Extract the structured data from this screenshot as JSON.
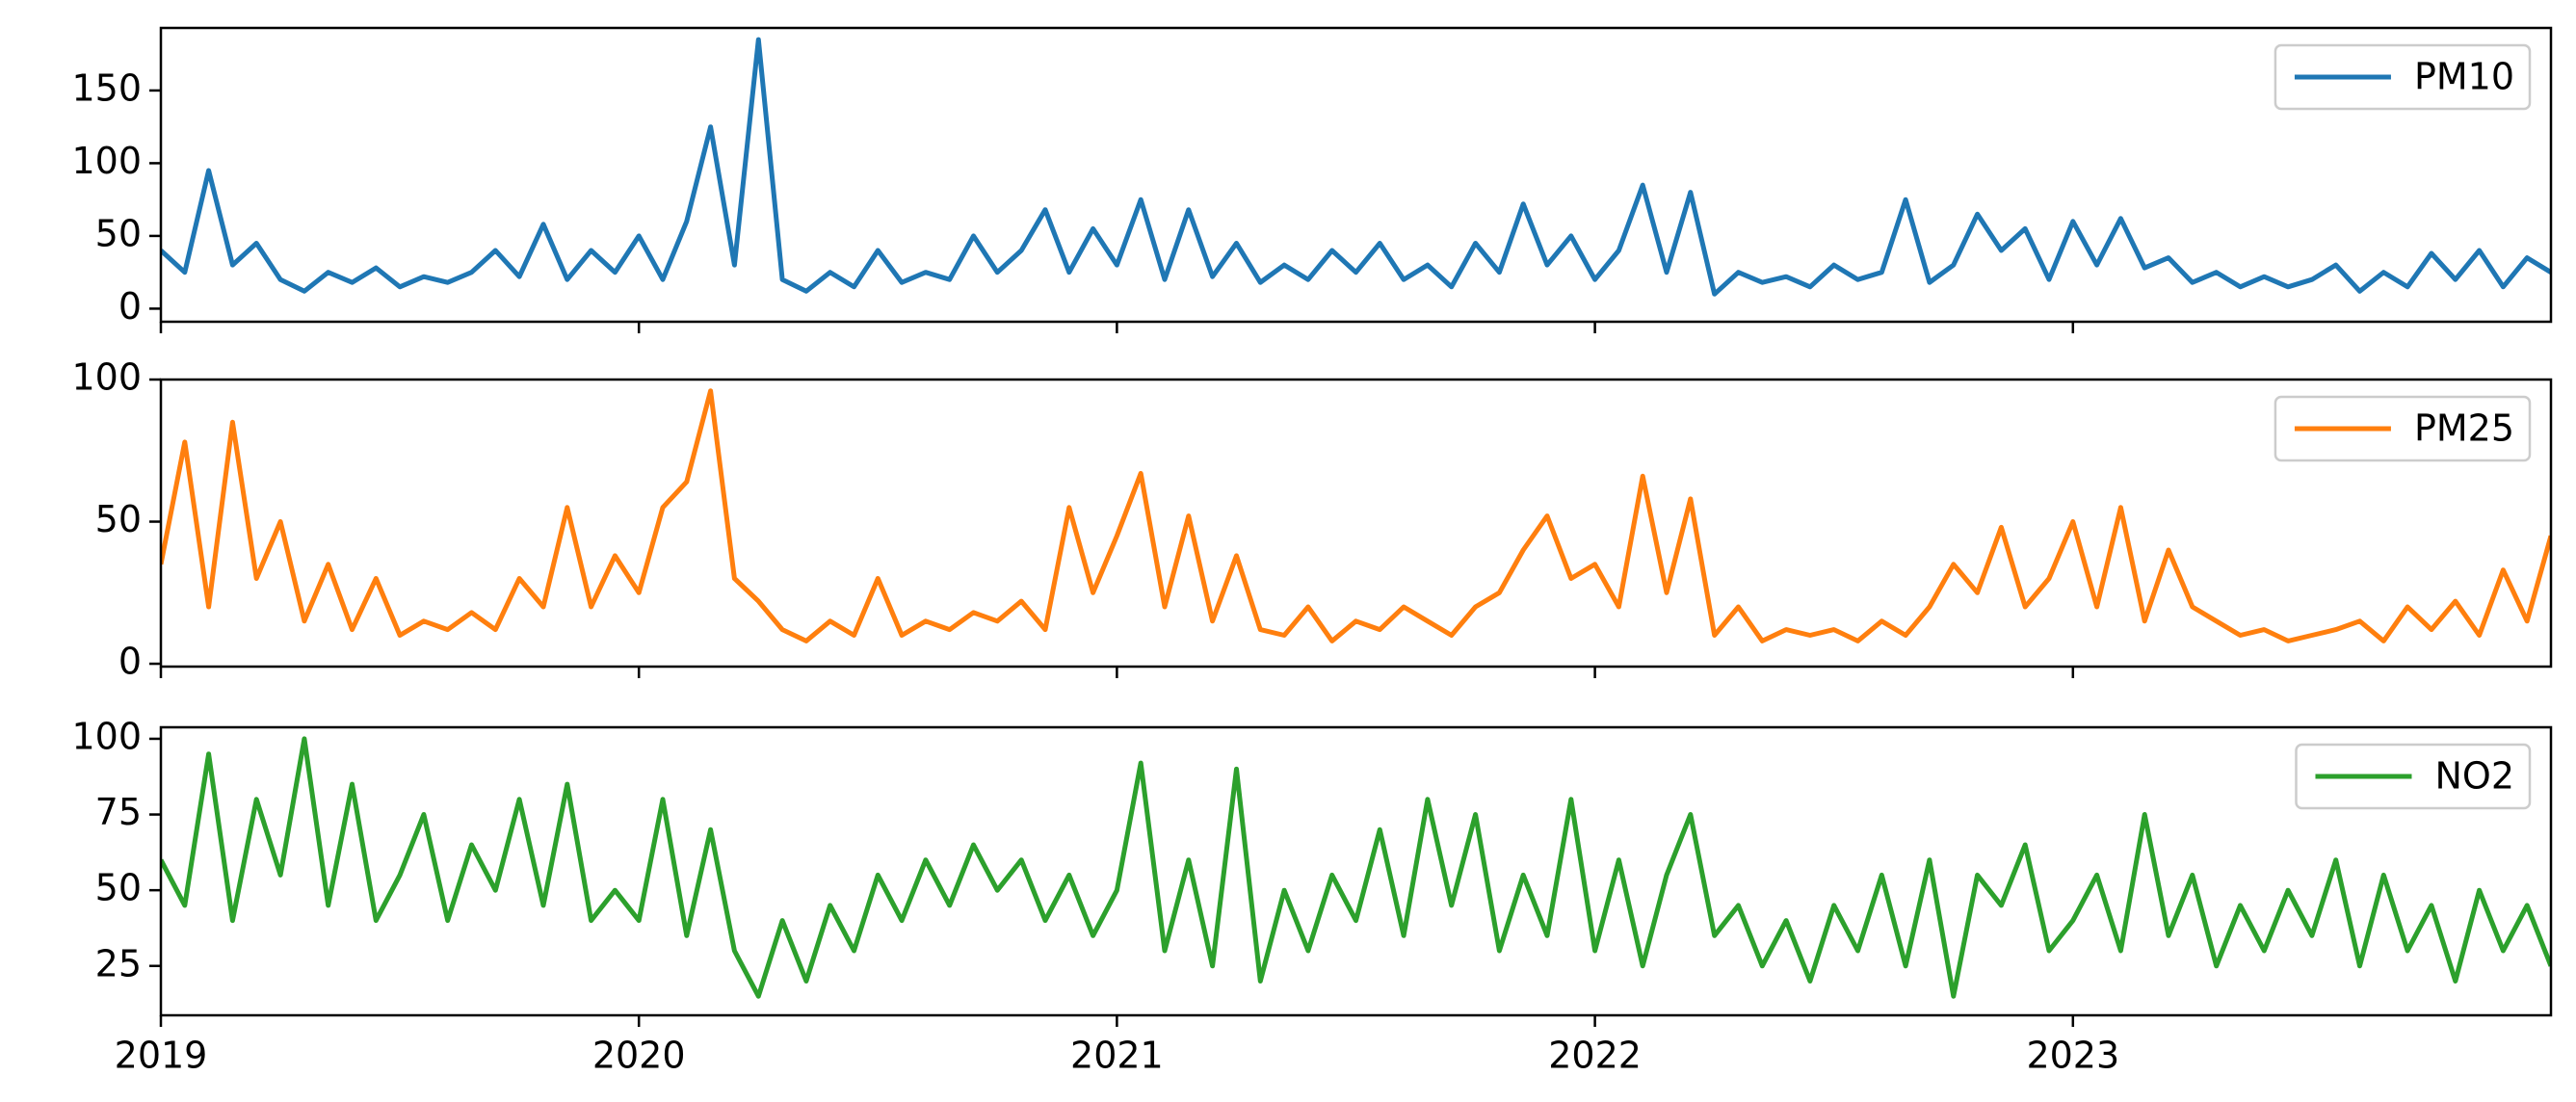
{
  "chart_data": {
    "type": "line",
    "legend": "upper right",
    "x": [
      2019.0,
      2019.05,
      2019.1,
      2019.15,
      2019.2,
      2019.25,
      2019.3,
      2019.35,
      2019.4,
      2019.45,
      2019.5,
      2019.55,
      2019.6,
      2019.65,
      2019.7,
      2019.75,
      2019.8,
      2019.85,
      2019.9,
      2019.95,
      2020.0,
      2020.05,
      2020.1,
      2020.15,
      2020.2,
      2020.25,
      2020.3,
      2020.35,
      2020.4,
      2020.45,
      2020.5,
      2020.55,
      2020.6,
      2020.65,
      2020.7,
      2020.75,
      2020.8,
      2020.85,
      2020.9,
      2020.95,
      2021.0,
      2021.05,
      2021.1,
      2021.15,
      2021.2,
      2021.25,
      2021.3,
      2021.35,
      2021.4,
      2021.45,
      2021.5,
      2021.55,
      2021.6,
      2021.65,
      2021.7,
      2021.75,
      2021.8,
      2021.85,
      2021.9,
      2021.95,
      2022.0,
      2022.05,
      2022.1,
      2022.15,
      2022.2,
      2022.25,
      2022.3,
      2022.35,
      2022.4,
      2022.45,
      2022.5,
      2022.55,
      2022.6,
      2022.65,
      2022.7,
      2022.75,
      2022.8,
      2022.85,
      2022.9,
      2022.95,
      2023.0,
      2023.05,
      2023.1,
      2023.15,
      2023.2,
      2023.25,
      2023.3,
      2023.35,
      2023.4,
      2023.45,
      2023.5,
      2023.55,
      2023.6,
      2023.65,
      2023.7,
      2023.75,
      2023.8,
      2023.85,
      2023.9,
      2023.95,
      2024.0
    ],
    "xlim": [
      2019,
      2024
    ],
    "xticks": [
      2019,
      2020,
      2021,
      2022,
      2023
    ],
    "panels": [
      {
        "ylim": [
          -9,
          193
        ],
        "yticks": [
          0,
          50,
          100,
          150
        ],
        "series": [
          {
            "name": "PM10",
            "color": "#1f77b4",
            "values": [
              40,
              25,
              95,
              30,
              45,
              20,
              12,
              25,
              18,
              28,
              15,
              22,
              18,
              25,
              40,
              22,
              58,
              20,
              40,
              25,
              50,
              20,
              60,
              125,
              30,
              185,
              20,
              12,
              25,
              15,
              40,
              18,
              25,
              20,
              50,
              25,
              40,
              68,
              25,
              55,
              30,
              75,
              20,
              68,
              22,
              45,
              18,
              30,
              20,
              40,
              25,
              45,
              20,
              30,
              15,
              45,
              25,
              72,
              30,
              50,
              20,
              40,
              85,
              25,
              80,
              10,
              25,
              18,
              22,
              15,
              30,
              20,
              25,
              75,
              18,
              30,
              65,
              40,
              55,
              20,
              60,
              30,
              62,
              28,
              35,
              18,
              25,
              15,
              22,
              15,
              20,
              30,
              12,
              25,
              15,
              38,
              20,
              40,
              15,
              35,
              25
            ]
          }
        ]
      },
      {
        "ylim": [
          -1,
          100
        ],
        "yticks": [
          0,
          50,
          100
        ],
        "series": [
          {
            "name": "PM25",
            "color": "#ff7f0e",
            "values": [
              35,
              78,
              20,
              85,
              30,
              50,
              15,
              35,
              12,
              30,
              10,
              15,
              12,
              18,
              12,
              30,
              20,
              55,
              20,
              38,
              25,
              55,
              64,
              96,
              30,
              22,
              12,
              8,
              15,
              10,
              30,
              10,
              15,
              12,
              18,
              15,
              22,
              12,
              55,
              25,
              45,
              67,
              20,
              52,
              15,
              38,
              12,
              10,
              20,
              8,
              15,
              12,
              20,
              15,
              10,
              20,
              25,
              40,
              52,
              30,
              35,
              20,
              66,
              25,
              58,
              10,
              20,
              8,
              12,
              10,
              12,
              8,
              15,
              10,
              20,
              35,
              25,
              48,
              20,
              30,
              50,
              20,
              55,
              15,
              40,
              20,
              15,
              10,
              12,
              8,
              10,
              12,
              15,
              8,
              20,
              12,
              22,
              10,
              33,
              15,
              45
            ]
          }
        ]
      },
      {
        "ylim": [
          8.7,
          103.8
        ],
        "yticks": [
          25,
          50,
          75,
          100
        ],
        "series": [
          {
            "name": "NO2",
            "color": "#2ca02c",
            "values": [
              60,
              45,
              95,
              40,
              80,
              55,
              100,
              45,
              85,
              40,
              55,
              75,
              40,
              65,
              50,
              80,
              45,
              85,
              40,
              50,
              40,
              80,
              35,
              70,
              30,
              15,
              40,
              20,
              45,
              30,
              55,
              40,
              60,
              45,
              65,
              50,
              60,
              40,
              55,
              35,
              50,
              92,
              30,
              60,
              25,
              90,
              20,
              50,
              30,
              55,
              40,
              70,
              35,
              80,
              45,
              75,
              30,
              55,
              35,
              80,
              30,
              60,
              25,
              55,
              75,
              35,
              45,
              25,
              40,
              20,
              45,
              30,
              55,
              25,
              60,
              15,
              55,
              45,
              65,
              30,
              40,
              55,
              30,
              75,
              35,
              55,
              25,
              45,
              30,
              50,
              35,
              60,
              25,
              55,
              30,
              45,
              20,
              50,
              30,
              45,
              25
            ]
          }
        ]
      }
    ]
  }
}
